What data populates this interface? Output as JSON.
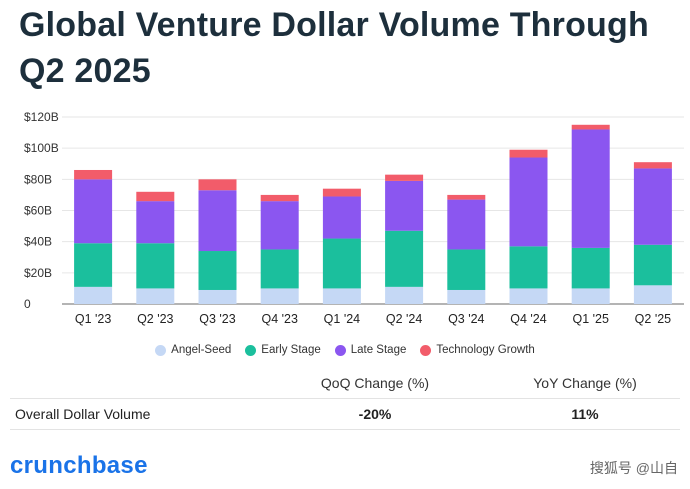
{
  "title": "Global Venture Dollar Volume Through Q2 2025",
  "chart_data": {
    "type": "bar",
    "stacked": true,
    "categories": [
      "Q1 '23",
      "Q2 '23",
      "Q3 '23",
      "Q4 '23",
      "Q1 '24",
      "Q2 '24",
      "Q3 '24",
      "Q4 '24",
      "Q1 '25",
      "Q2 '25"
    ],
    "series": [
      {
        "name": "Angel-Seed",
        "color": "#c5d8f5",
        "values": [
          11,
          10,
          9,
          10,
          10,
          11,
          9,
          10,
          10,
          12
        ]
      },
      {
        "name": "Early Stage",
        "color": "#1bbf9d",
        "values": [
          28,
          29,
          25,
          25,
          32,
          36,
          26,
          27,
          26,
          26
        ]
      },
      {
        "name": "Late Stage",
        "color": "#8b56f0",
        "values": [
          41,
          27,
          39,
          31,
          27,
          32,
          32,
          57,
          76,
          49
        ]
      },
      {
        "name": "Technology Growth",
        "color": "#f25c6a",
        "values": [
          6,
          6,
          7,
          4,
          5,
          4,
          3,
          5,
          3,
          4
        ]
      }
    ],
    "yticks": [
      "0",
      "$20B",
      "$40B",
      "$60B",
      "$80B",
      "$100B",
      "$120B"
    ],
    "ylim": [
      0,
      120
    ],
    "grid": true,
    "legend_position": "bottom"
  },
  "table": {
    "headers": [
      "",
      "QoQ Change (%)",
      "YoY Change (%)"
    ],
    "rows": [
      {
        "label": "Overall Dollar Volume",
        "qoq": "-20%",
        "yoy": "11%"
      }
    ]
  },
  "brand": "crunchbase",
  "watermark": "搜狐号 @山自"
}
